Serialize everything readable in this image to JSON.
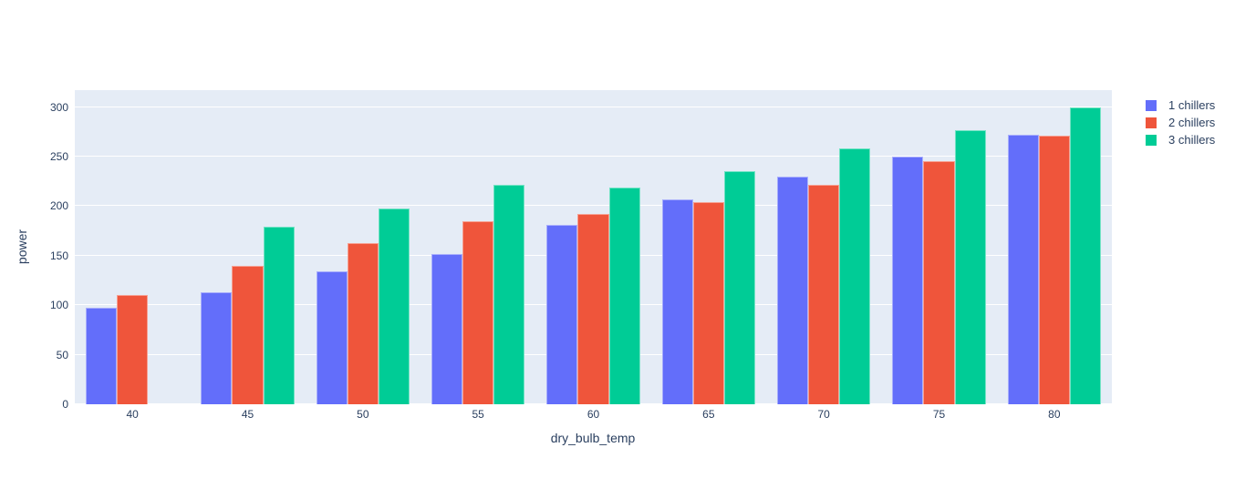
{
  "figure": {
    "background": "#ffffff",
    "plot_bgcolor": "#E5ECF6",
    "grid_color": "#ffffff",
    "text_color": "#2a3f5f"
  },
  "chart_data": {
    "type": "bar",
    "barmode": "group",
    "title": "",
    "xlabel": "dry_bulb_temp",
    "ylabel": "power",
    "categories": [
      40,
      45,
      50,
      55,
      60,
      65,
      70,
      75,
      80
    ],
    "series": [
      {
        "name": "1 chillers",
        "color": "#636EFA",
        "values": [
          97,
          113,
          134,
          152,
          181,
          207,
          230,
          250,
          272
        ]
      },
      {
        "name": "2 chillers",
        "color": "#EF553B",
        "values": [
          110,
          140,
          163,
          185,
          192,
          204,
          221,
          245,
          271
        ]
      },
      {
        "name": "3 chillers",
        "color": "#00CC96",
        "values": [
          null,
          179,
          198,
          221,
          219,
          235,
          258,
          277,
          300
        ]
      }
    ],
    "yticks": [
      0,
      50,
      100,
      150,
      200,
      250,
      300
    ],
    "ylim": [
      0,
      317
    ],
    "grid": true,
    "legend": {
      "position": "top-right-outside",
      "entries": [
        "1 chillers",
        "2 chillers",
        "3 chillers"
      ]
    }
  }
}
